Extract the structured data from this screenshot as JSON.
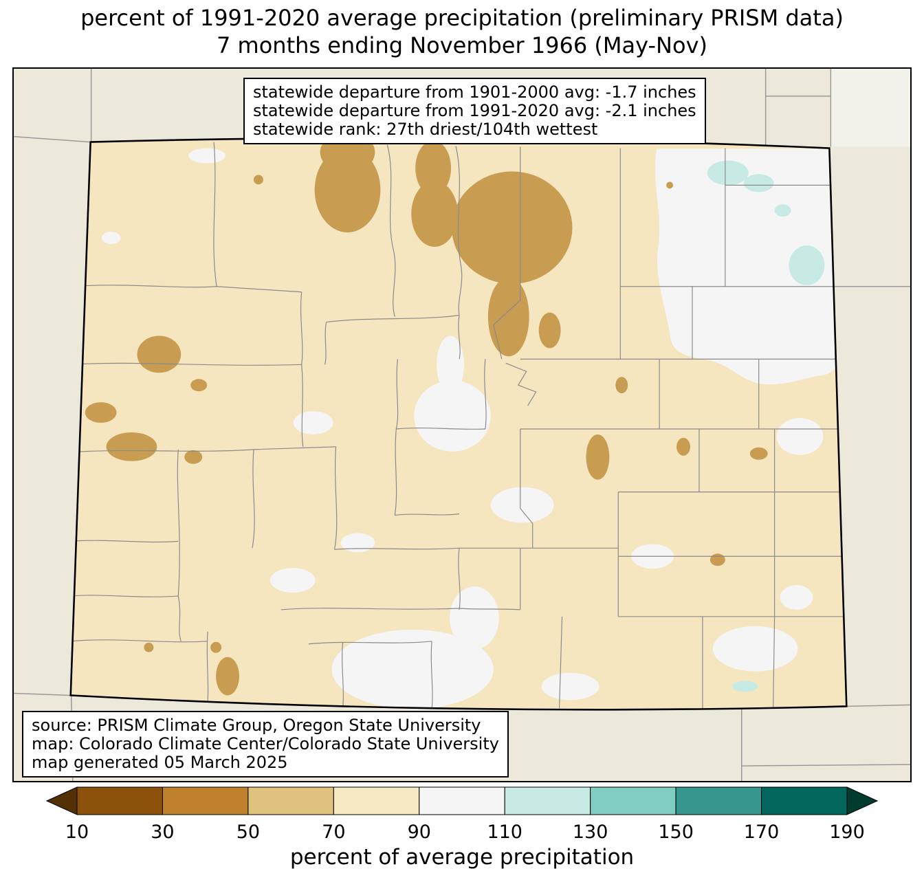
{
  "title": {
    "line1": "percent of 1991-2020 average precipitation (preliminary PRISM data)",
    "line2": "7 months ending November 1966 (May-Nov)"
  },
  "stats_box": {
    "line1": "statewide departure from 1901-2000 avg: -1.7 inches",
    "line2": "statewide departure from 1991-2020 avg: -2.1 inches",
    "line3": "statewide rank: 27th driest/104th wettest"
  },
  "source_box": {
    "line1": "source: PRISM Climate Group, Oregon State University",
    "line2": "map: Colorado Climate Center/Colorado State University",
    "line3": "map generated 05 March 2025"
  },
  "colorbar": {
    "caption": "percent of average precipitation",
    "ticks": [
      10,
      30,
      50,
      70,
      90,
      110,
      130,
      150,
      170,
      190
    ],
    "segment_colors": [
      "#8c510a",
      "#bf812d",
      "#dfc27d",
      "#f6e8c3",
      "#f5f5f5",
      "#c7eae5",
      "#80cdc1",
      "#35978f",
      "#01665e"
    ],
    "arrow_left_color": "#543005",
    "arrow_right_color": "#003c30"
  },
  "theme": {
    "page_bg": "#ffffff",
    "text_color": "#000000",
    "map_outside": "#ece9db",
    "map_outside_corner": "#f2f1ea",
    "state_fill": "#f5e6c0",
    "patch_dry": "#c89d52",
    "patch_wet": "#f5f5f5",
    "patch_very_wet": "#c7eae5",
    "county_line": "#8a8a8a",
    "neighbor_line": "#999999",
    "state_border": "#000000",
    "box_bg": "#ffffff"
  },
  "chart_data": {
    "type": "choropleth_map",
    "region": "Colorado with surrounding state borders",
    "variable": "percent of 1991-2020 average precipitation (preliminary PRISM data)",
    "period": "7 months ending November 1966 (May-Nov)",
    "colorbar_label": "percent of average precipitation",
    "colorbar_ticks": [
      10,
      30,
      50,
      70,
      90,
      110,
      130,
      150,
      170,
      190
    ],
    "statewide_departure_from_1901_2000_avg_inches": -1.7,
    "statewide_departure_from_1991_2020_avg_inches": -2.1,
    "statewide_rank": "27th driest/104th wettest",
    "dominant_bin_percent": "70-90",
    "notable_features": "dry (50-70%) patches in north-central and west Colorado; near-normal (90-110%) areas in northeast corner, center and San Luis Valley; small wet (110-130%) spots in far northeast"
  }
}
